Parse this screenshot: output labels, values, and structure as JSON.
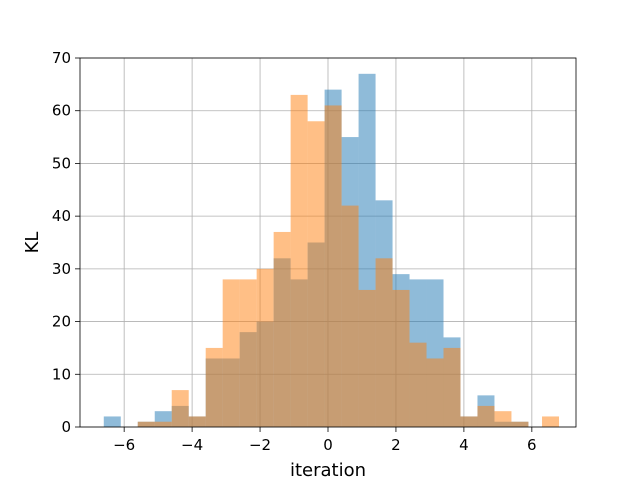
{
  "chart_data": {
    "type": "bar",
    "subtype": "overlapping-histogram",
    "title": "",
    "xlabel": "iteration",
    "ylabel": "KL",
    "xlim": [
      -7.3,
      7.3
    ],
    "ylim": [
      0,
      70
    ],
    "xticks": [
      "−6",
      "−4",
      "−2",
      "0",
      "2",
      "4",
      "6"
    ],
    "xtick_values": [
      -6,
      -4,
      -2,
      0,
      2,
      4,
      6
    ],
    "yticks": [
      "0",
      "10",
      "20",
      "30",
      "40",
      "50",
      "60",
      "70"
    ],
    "ytick_values": [
      0,
      10,
      20,
      30,
      40,
      50,
      60,
      70
    ],
    "grid": true,
    "series": [
      {
        "color": "#1f77b4",
        "alpha": 0.5,
        "bins": [
          {
            "x0": -6.6,
            "x1": -6.1,
            "count": 2
          },
          {
            "x0": -6.1,
            "x1": -5.6,
            "count": 0
          },
          {
            "x0": -5.6,
            "x1": -5.1,
            "count": 1
          },
          {
            "x0": -5.1,
            "x1": -4.6,
            "count": 3
          },
          {
            "x0": -4.6,
            "x1": -4.1,
            "count": 4
          },
          {
            "x0": -4.1,
            "x1": -3.6,
            "count": 2
          },
          {
            "x0": -3.6,
            "x1": -3.1,
            "count": 13
          },
          {
            "x0": -3.1,
            "x1": -2.6,
            "count": 13
          },
          {
            "x0": -2.6,
            "x1": -2.1,
            "count": 18
          },
          {
            "x0": -2.1,
            "x1": -1.6,
            "count": 20
          },
          {
            "x0": -1.6,
            "x1": -1.1,
            "count": 32
          },
          {
            "x0": -1.1,
            "x1": -0.6,
            "count": 28
          },
          {
            "x0": -0.6,
            "x1": -0.1,
            "count": 35
          },
          {
            "x0": -0.1,
            "x1": 0.4,
            "count": 64
          },
          {
            "x0": 0.4,
            "x1": 0.9,
            "count": 55
          },
          {
            "x0": 0.9,
            "x1": 1.4,
            "count": 67
          },
          {
            "x0": 1.4,
            "x1": 1.9,
            "count": 43
          },
          {
            "x0": 1.9,
            "x1": 2.4,
            "count": 29
          },
          {
            "x0": 2.4,
            "x1": 2.9,
            "count": 28
          },
          {
            "x0": 2.9,
            "x1": 3.4,
            "count": 28
          },
          {
            "x0": 3.4,
            "x1": 3.9,
            "count": 17
          },
          {
            "x0": 3.9,
            "x1": 4.4,
            "count": 2
          },
          {
            "x0": 4.4,
            "x1": 4.9,
            "count": 6
          },
          {
            "x0": 4.9,
            "x1": 5.4,
            "count": 1
          },
          {
            "x0": 5.4,
            "x1": 5.9,
            "count": 1
          }
        ]
      },
      {
        "color": "#ff7f0e",
        "alpha": 0.5,
        "bins": [
          {
            "x0": -5.6,
            "x1": -5.1,
            "count": 1
          },
          {
            "x0": -5.1,
            "x1": -4.6,
            "count": 1
          },
          {
            "x0": -4.6,
            "x1": -4.1,
            "count": 7
          },
          {
            "x0": -4.1,
            "x1": -3.6,
            "count": 2
          },
          {
            "x0": -3.6,
            "x1": -3.1,
            "count": 15
          },
          {
            "x0": -3.1,
            "x1": -2.6,
            "count": 28
          },
          {
            "x0": -2.6,
            "x1": -2.1,
            "count": 28
          },
          {
            "x0": -2.1,
            "x1": -1.6,
            "count": 30
          },
          {
            "x0": -1.6,
            "x1": -1.1,
            "count": 37
          },
          {
            "x0": -1.1,
            "x1": -0.6,
            "count": 63
          },
          {
            "x0": -0.6,
            "x1": -0.1,
            "count": 58
          },
          {
            "x0": -0.1,
            "x1": 0.4,
            "count": 61
          },
          {
            "x0": 0.4,
            "x1": 0.9,
            "count": 42
          },
          {
            "x0": 0.9,
            "x1": 1.4,
            "count": 26
          },
          {
            "x0": 1.4,
            "x1": 1.9,
            "count": 32
          },
          {
            "x0": 1.9,
            "x1": 2.4,
            "count": 26
          },
          {
            "x0": 2.4,
            "x1": 2.9,
            "count": 16
          },
          {
            "x0": 2.9,
            "x1": 3.4,
            "count": 13
          },
          {
            "x0": 3.4,
            "x1": 3.9,
            "count": 15
          },
          {
            "x0": 3.9,
            "x1": 4.4,
            "count": 2
          },
          {
            "x0": 4.4,
            "x1": 4.9,
            "count": 4
          },
          {
            "x0": 4.9,
            "x1": 5.4,
            "count": 3
          },
          {
            "x0": 5.4,
            "x1": 5.9,
            "count": 1
          },
          {
            "x0": 6.3,
            "x1": 6.8,
            "count": 2
          }
        ]
      }
    ]
  }
}
